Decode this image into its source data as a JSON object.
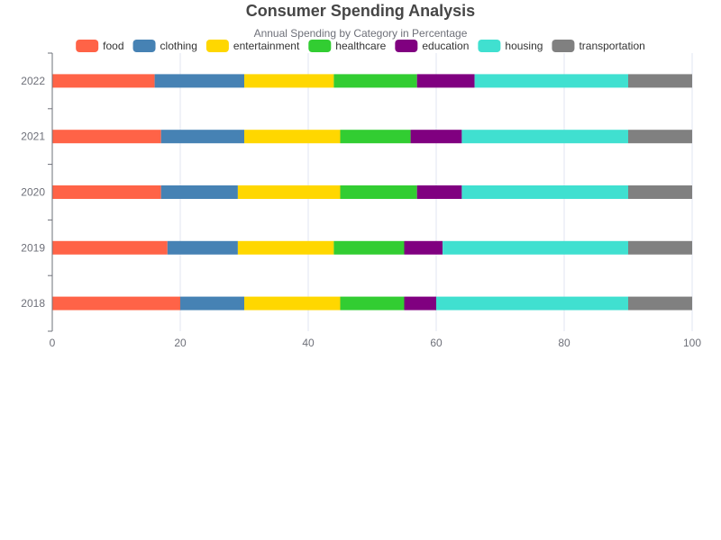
{
  "chart_data": {
    "type": "bar",
    "orientation": "horizontal",
    "stacked": true,
    "title": "Consumer Spending Analysis",
    "subtitle": "Annual Spending by Category in Percentage",
    "categories": [
      "2018",
      "2019",
      "2020",
      "2021",
      "2022"
    ],
    "xlim": [
      0,
      100
    ],
    "xticks": [
      0,
      20,
      40,
      60,
      80,
      100
    ],
    "grid": true,
    "legend_position": "top",
    "series": [
      {
        "name": "food",
        "color": "#FF6347",
        "values": [
          20,
          18,
          17,
          17,
          16
        ]
      },
      {
        "name": "clothing",
        "color": "#4682B4",
        "values": [
          10,
          11,
          12,
          13,
          14
        ]
      },
      {
        "name": "entertainment",
        "color": "#FFD700",
        "values": [
          15,
          15,
          16,
          15,
          14
        ]
      },
      {
        "name": "healthcare",
        "color": "#32CD32",
        "values": [
          10,
          11,
          12,
          11,
          13
        ]
      },
      {
        "name": "education",
        "color": "#800080",
        "values": [
          5,
          6,
          7,
          8,
          9
        ]
      },
      {
        "name": "housing",
        "color": "#40E0D0",
        "values": [
          30,
          29,
          26,
          26,
          24
        ]
      },
      {
        "name": "transportation",
        "color": "#808080",
        "values": [
          10,
          10,
          10,
          10,
          10
        ]
      }
    ]
  }
}
